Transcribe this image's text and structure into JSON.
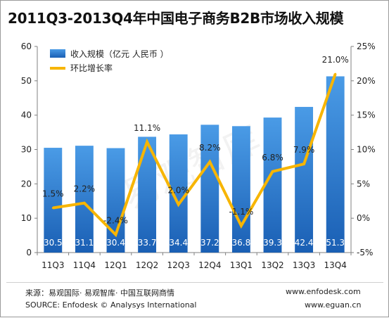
{
  "title": "2011Q3-2013Q4年中国电子商务B2B市场收入规模",
  "source": {
    "line1": "来源：易观国际· 易观智库· 中国互联网商情",
    "line2": "SOURCE: Enfodesk © Analysys International",
    "site1": "www.enfodesk.com",
    "site2": "www.eguan.cn"
  },
  "watermark": "易观智库",
  "colors": {
    "bar_top": "#4a9be6",
    "bar_bottom": "#1a5fb4",
    "line": "#f7b500",
    "axis": "#808080"
  },
  "chart_data": {
    "type": "bar",
    "categories": [
      "11Q3",
      "11Q4",
      "12Q1",
      "12Q2",
      "12Q3",
      "12Q4",
      "13Q1",
      "13Q2",
      "13Q3",
      "13Q4"
    ],
    "series": [
      {
        "name": "收入规模（亿元 人民币 ）",
        "type": "bar",
        "axis": "left",
        "values": [
          30.5,
          31.1,
          30.4,
          33.7,
          34.4,
          37.2,
          36.8,
          39.3,
          42.4,
          51.3
        ],
        "labels": [
          "30.5",
          "31.1",
          "30.4",
          "33.7",
          "34.4",
          "37.2",
          "36.8",
          "39.3",
          "42.4",
          "51.3"
        ]
      },
      {
        "name": "环比增长率",
        "type": "line",
        "axis": "right",
        "values": [
          1.5,
          2.2,
          -2.4,
          11.1,
          2.0,
          8.2,
          -1.1,
          6.8,
          7.9,
          21.0
        ],
        "labels": [
          "1.5%",
          "2.2%",
          "-2.4%",
          "11.1%",
          "2.0%",
          "8.2%",
          "-1.1%",
          "6.8%",
          "7.9%",
          "21.0%"
        ]
      }
    ],
    "y_left": {
      "min": 0,
      "max": 60,
      "ticks": [
        "0",
        "10",
        "20",
        "30",
        "40",
        "50",
        "60"
      ]
    },
    "y_right": {
      "min": -5,
      "max": 25,
      "ticks": [
        "-5%",
        "0%",
        "5%",
        "10%",
        "15%",
        "20%",
        "25%"
      ]
    },
    "grid": false,
    "legend": "top-left"
  }
}
